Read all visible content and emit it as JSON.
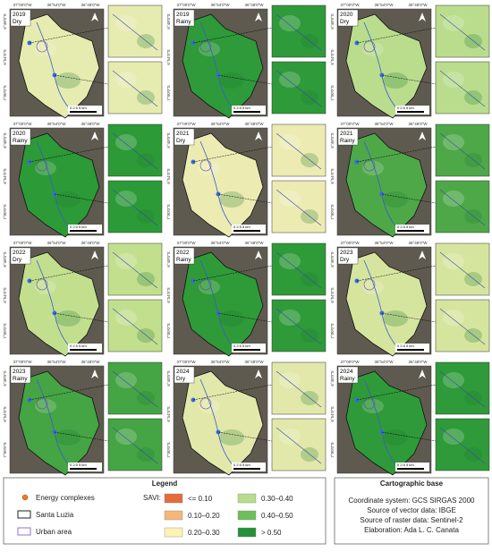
{
  "coords": {
    "x": [
      "37°00'0\"W",
      "36°54'0\"W",
      "36°48'0\"W"
    ],
    "y": [
      "6°48'0\"S",
      "6°54'0\"S",
      "7°00'0\"S"
    ]
  },
  "scale_bar": "0  2.5  5 km",
  "panels": [
    {
      "year": "2019",
      "season": "Dry",
      "color": "#e6ebb0"
    },
    {
      "year": "2019",
      "season": "Rainy",
      "color": "#2e9a3a"
    },
    {
      "year": "2020",
      "season": "Dry",
      "color": "#b9dd8c"
    },
    {
      "year": "2020",
      "season": "Rainy",
      "color": "#2c9a36"
    },
    {
      "year": "2021",
      "season": "Dry",
      "color": "#ecebb2"
    },
    {
      "year": "2021",
      "season": "Rainy",
      "color": "#4ea848"
    },
    {
      "year": "2022",
      "season": "Dry",
      "color": "#c2df8e"
    },
    {
      "year": "2022",
      "season": "Rainy",
      "color": "#2f9a38"
    },
    {
      "year": "2023",
      "season": "Dry",
      "color": "#d6e59e"
    },
    {
      "year": "2023",
      "season": "Rainy",
      "color": "#45a444"
    },
    {
      "year": "2024",
      "season": "Dry",
      "color": "#e2e8aa"
    },
    {
      "year": "2024",
      "season": "Rainy",
      "color": "#2f9a39"
    }
  ],
  "legend": {
    "title": "Legend",
    "energy": "Energy complexes",
    "boundary": "Santa Luzia",
    "urban": "Urban area",
    "savi": "SAVI:",
    "classes": [
      {
        "label": "<= 0.10",
        "color": "#e46c3a"
      },
      {
        "label": "0.10–0.20",
        "color": "#f3b77a"
      },
      {
        "label": "0.20–0.30",
        "color": "#fbf3b5"
      },
      {
        "label": "0.30–0.40",
        "color": "#b7dc8c"
      },
      {
        "label": "0.40–0.50",
        "color": "#6cbf5a"
      },
      {
        "label": "> 0.50",
        "color": "#23923a"
      }
    ]
  },
  "carto": {
    "title": "Cartographic base",
    "lines": [
      "Coordinate system: GCS SIRGAS 2000",
      "Source of vector data: IBGE",
      "Source of raster data: Sentinel-2",
      "Elaboration: Ada L. C. Canata"
    ]
  }
}
